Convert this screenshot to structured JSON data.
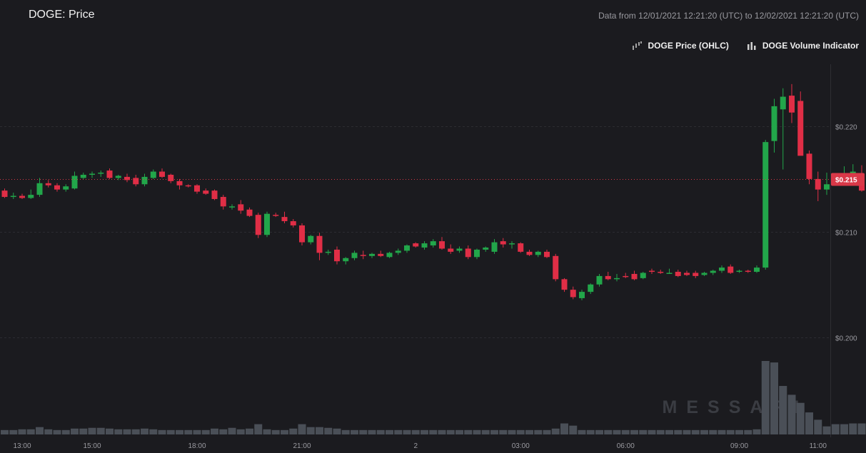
{
  "header": {
    "title": "DOGE: Price",
    "range_label": "Data from 12/01/2021 12:21:20 (UTC) to 12/02/2021 12:21:20 (UTC)"
  },
  "watermark": "MESSARI",
  "colors": {
    "up": "#22a64a",
    "down": "#e02e46",
    "volume": "#4a4f57",
    "grid": "#2c2c31",
    "price_line": "#d93848"
  },
  "chart_data": [
    {
      "type": "candlestick",
      "title": "DOGE: Price",
      "series_name": "DOGE Price (OHLC)",
      "x_ticks": [
        "13:00",
        "15:00",
        "18:00",
        "21:00",
        "2",
        "03:00",
        "06:00",
        "09:00",
        "11:00"
      ],
      "y_ticks": [
        "$0.200",
        "$0.210",
        "$0.220"
      ],
      "ylim": [
        0.1945,
        0.2225
      ],
      "grid": true,
      "last_price_label": "$0.215",
      "last_price": 0.215,
      "candles": [
        [
          0.2139,
          0.2141,
          0.2132,
          0.2133
        ],
        [
          0.2133,
          0.2137,
          0.2131,
          0.2134
        ],
        [
          0.2134,
          0.2136,
          0.2131,
          0.2132
        ],
        [
          0.2132,
          0.214,
          0.2131,
          0.2135
        ],
        [
          0.2135,
          0.2151,
          0.2133,
          0.2146
        ],
        [
          0.2146,
          0.2149,
          0.2142,
          0.2144
        ],
        [
          0.2144,
          0.2146,
          0.2138,
          0.214
        ],
        [
          0.214,
          0.2145,
          0.2138,
          0.2143
        ],
        [
          0.2141,
          0.2157,
          0.214,
          0.2153
        ],
        [
          0.2151,
          0.2156,
          0.215,
          0.2154
        ],
        [
          0.2154,
          0.2157,
          0.2151,
          0.2155
        ],
        [
          0.2155,
          0.2158,
          0.2152,
          0.2156
        ],
        [
          0.2158,
          0.216,
          0.215,
          0.2151
        ],
        [
          0.2151,
          0.2154,
          0.2149,
          0.2153
        ],
        [
          0.2152,
          0.2155,
          0.2147,
          0.2149
        ],
        [
          0.2151,
          0.2154,
          0.2143,
          0.2145
        ],
        [
          0.2145,
          0.2155,
          0.2143,
          0.2152
        ],
        [
          0.2151,
          0.2159,
          0.215,
          0.2157
        ],
        [
          0.2157,
          0.216,
          0.2151,
          0.2152
        ],
        [
          0.2154,
          0.2155,
          0.2146,
          0.2148
        ],
        [
          0.2148,
          0.215,
          0.214,
          0.2144
        ],
        [
          0.2144,
          0.2145,
          0.2142,
          0.2143
        ],
        [
          0.2144,
          0.2145,
          0.2136,
          0.2138
        ],
        [
          0.2139,
          0.2141,
          0.2135,
          0.2136
        ],
        [
          0.2139,
          0.214,
          0.213,
          0.2131
        ],
        [
          0.2133,
          0.2135,
          0.2121,
          0.2124
        ],
        [
          0.2123,
          0.2126,
          0.2121,
          0.2124
        ],
        [
          0.2126,
          0.213,
          0.2117,
          0.212
        ],
        [
          0.2121,
          0.2123,
          0.2114,
          0.2115
        ],
        [
          0.2116,
          0.2118,
          0.2094,
          0.2097
        ],
        [
          0.2097,
          0.2119,
          0.2095,
          0.2117
        ],
        [
          0.2116,
          0.2118,
          0.2114,
          0.2115
        ],
        [
          0.2114,
          0.2119,
          0.2108,
          0.211
        ],
        [
          0.211,
          0.2112,
          0.2104,
          0.2106
        ],
        [
          0.2106,
          0.2108,
          0.2087,
          0.209
        ],
        [
          0.209,
          0.2097,
          0.2088,
          0.2096
        ],
        [
          0.2096,
          0.2099,
          0.2073,
          0.208
        ],
        [
          0.208,
          0.2083,
          0.2078,
          0.2081
        ],
        [
          0.2083,
          0.2086,
          0.2069,
          0.2072
        ],
        [
          0.2072,
          0.2076,
          0.2069,
          0.2075
        ],
        [
          0.2075,
          0.2082,
          0.2073,
          0.208
        ],
        [
          0.2078,
          0.2082,
          0.2074,
          0.2077
        ],
        [
          0.2077,
          0.208,
          0.2075,
          0.2079
        ],
        [
          0.2079,
          0.2082,
          0.2076,
          0.2077
        ],
        [
          0.2076,
          0.2081,
          0.2075,
          0.208
        ],
        [
          0.208,
          0.2084,
          0.2078,
          0.2082
        ],
        [
          0.2082,
          0.2088,
          0.208,
          0.2087
        ],
        [
          0.2089,
          0.209,
          0.2085,
          0.2086
        ],
        [
          0.2085,
          0.2091,
          0.2083,
          0.2089
        ],
        [
          0.2087,
          0.2093,
          0.2085,
          0.2091
        ],
        [
          0.2091,
          0.2095,
          0.2083,
          0.2084
        ],
        [
          0.2084,
          0.2088,
          0.2079,
          0.2081
        ],
        [
          0.2082,
          0.2086,
          0.208,
          0.2084
        ],
        [
          0.2084,
          0.2087,
          0.2074,
          0.2076
        ],
        [
          0.2076,
          0.2084,
          0.2074,
          0.2083
        ],
        [
          0.2083,
          0.2086,
          0.2081,
          0.2085
        ],
        [
          0.2081,
          0.2093,
          0.2079,
          0.209
        ],
        [
          0.2091,
          0.2094,
          0.2085,
          0.2088
        ],
        [
          0.2088,
          0.2091,
          0.2084,
          0.2089
        ],
        [
          0.2089,
          0.209,
          0.208,
          0.2081
        ],
        [
          0.2081,
          0.2083,
          0.2077,
          0.2078
        ],
        [
          0.2078,
          0.2082,
          0.2076,
          0.2081
        ],
        [
          0.2081,
          0.2083,
          0.2075,
          0.2076
        ],
        [
          0.2077,
          0.2079,
          0.2053,
          0.2055
        ],
        [
          0.2055,
          0.2056,
          0.2043,
          0.2045
        ],
        [
          0.2045,
          0.2048,
          0.2036,
          0.2038
        ],
        [
          0.2037,
          0.2045,
          0.2035,
          0.2043
        ],
        [
          0.2043,
          0.2051,
          0.2041,
          0.205
        ],
        [
          0.205,
          0.206,
          0.2048,
          0.2058
        ],
        [
          0.2058,
          0.2062,
          0.2054,
          0.2055
        ],
        [
          0.2055,
          0.206,
          0.2053,
          0.2056
        ],
        [
          0.2058,
          0.2061,
          0.2056,
          0.2057
        ],
        [
          0.206,
          0.2063,
          0.2054,
          0.2055
        ],
        [
          0.2056,
          0.2062,
          0.2055,
          0.2061
        ],
        [
          0.2063,
          0.2065,
          0.206,
          0.2062
        ],
        [
          0.2062,
          0.2064,
          0.206,
          0.2061
        ],
        [
          0.2061,
          0.2065,
          0.206,
          0.2061
        ],
        [
          0.2062,
          0.2064,
          0.2057,
          0.2058
        ],
        [
          0.2061,
          0.2063,
          0.2058,
          0.2059
        ],
        [
          0.2061,
          0.2063,
          0.2056,
          0.2058
        ],
        [
          0.2059,
          0.2062,
          0.2058,
          0.2061
        ],
        [
          0.2061,
          0.2064,
          0.2059,
          0.2063
        ],
        [
          0.2063,
          0.2068,
          0.2061,
          0.2066
        ],
        [
          0.2067,
          0.2069,
          0.206,
          0.2061
        ],
        [
          0.2062,
          0.2064,
          0.2061,
          0.2063
        ],
        [
          0.2063,
          0.2064,
          0.2061,
          0.2062
        ],
        [
          0.2062,
          0.2068,
          0.2061,
          0.2066
        ],
        [
          0.2066,
          0.2187,
          0.2064,
          0.2185
        ],
        [
          0.2186,
          0.2226,
          0.2175,
          0.2219
        ],
        [
          0.2216,
          0.2236,
          0.2159,
          0.2228
        ],
        [
          0.2229,
          0.224,
          0.2203,
          0.2213
        ],
        [
          0.2224,
          0.2233,
          0.2173,
          0.2172
        ],
        [
          0.2174,
          0.2177,
          0.2145,
          0.215
        ],
        [
          0.215,
          0.2157,
          0.2129,
          0.214
        ],
        [
          0.214,
          0.2156,
          0.2135,
          0.2145
        ],
        [
          0.2146,
          0.2155,
          0.2144,
          0.2147
        ],
        [
          0.2147,
          0.2162,
          0.2145,
          0.2155
        ],
        [
          0.2155,
          0.2164,
          0.2153,
          0.2157
        ],
        [
          0.2154,
          0.2163,
          0.2138,
          0.2139
        ],
        [
          0.214,
          0.2154,
          0.2133,
          0.2145
        ],
        [
          0.2145,
          0.2162,
          0.2144,
          0.2156
        ],
        [
          0.2156,
          0.2161,
          0.2144,
          0.2149
        ]
      ]
    },
    {
      "type": "bar",
      "series_name": "DOGE Volume Indicator",
      "values": [
        0.06,
        0.06,
        0.07,
        0.07,
        0.1,
        0.07,
        0.06,
        0.06,
        0.08,
        0.08,
        0.09,
        0.09,
        0.08,
        0.07,
        0.07,
        0.07,
        0.08,
        0.07,
        0.06,
        0.06,
        0.06,
        0.06,
        0.06,
        0.06,
        0.08,
        0.07,
        0.09,
        0.07,
        0.08,
        0.14,
        0.07,
        0.06,
        0.06,
        0.08,
        0.14,
        0.1,
        0.1,
        0.09,
        0.08,
        0.06,
        0.06,
        0.06,
        0.06,
        0.06,
        0.06,
        0.06,
        0.06,
        0.06,
        0.06,
        0.06,
        0.06,
        0.06,
        0.06,
        0.06,
        0.06,
        0.06,
        0.06,
        0.06,
        0.06,
        0.06,
        0.06,
        0.06,
        0.06,
        0.08,
        0.15,
        0.12,
        0.06,
        0.06,
        0.06,
        0.06,
        0.06,
        0.06,
        0.06,
        0.06,
        0.06,
        0.06,
        0.06,
        0.06,
        0.06,
        0.06,
        0.06,
        0.06,
        0.06,
        0.06,
        0.06,
        0.06,
        0.07,
        1.0,
        0.98,
        0.66,
        0.54,
        0.43,
        0.3,
        0.2,
        0.11,
        0.14,
        0.14,
        0.15,
        0.15,
        0.31,
        0.16,
        0.1
      ]
    }
  ],
  "legend": {
    "price_label": "DOGE Price (OHLC)",
    "volume_label": "DOGE Volume Indicator"
  }
}
